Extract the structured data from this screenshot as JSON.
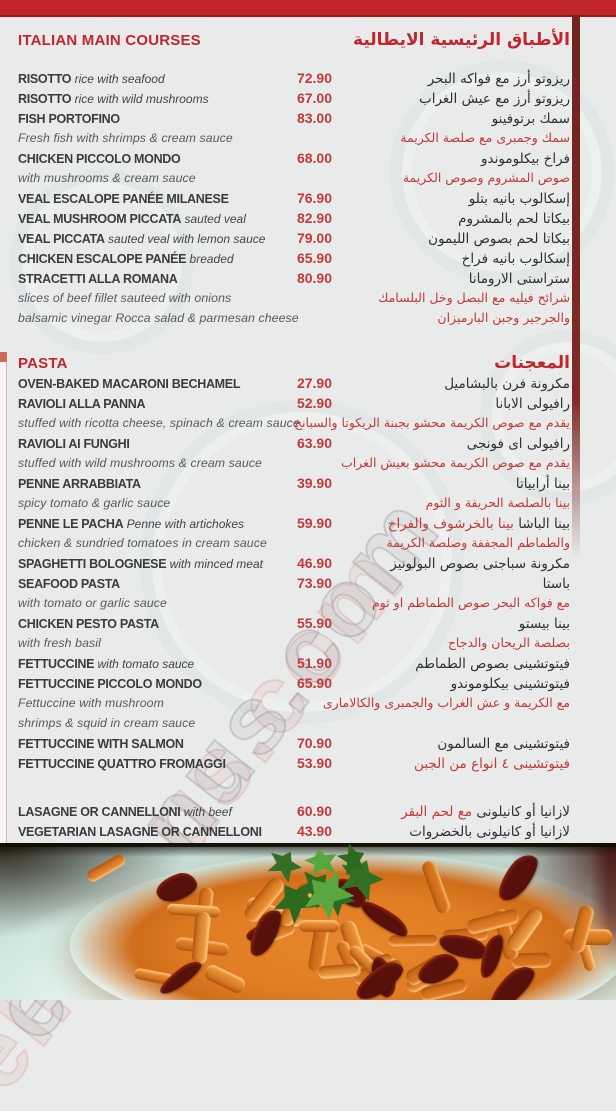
{
  "watermark": "elmenus.com",
  "colors": {
    "accent_red": "#c0262c",
    "price_red": "#bf3a38",
    "text_dark": "#3b3b3d",
    "desc_text": "#57585c",
    "arabic_red": "#c03a34",
    "strip_maroon": "#6f2420",
    "background": "#e9ebeb"
  },
  "sections": [
    {
      "title_en": "ITALIAN MAIN COURSES",
      "title_ar": "الأطباق الرئيسية الايطالية",
      "rows": [
        {
          "type": "item",
          "name": "RISOTTO",
          "note": "rice with seafood",
          "price": "72.90",
          "ar": "ريزوتو أرز مع فواكه البحر",
          "ar_red": ""
        },
        {
          "type": "item",
          "name": "RISOTTO",
          "note": "rice with wild mushrooms",
          "price": "67.00",
          "ar": "ريزوتو أرز مع عيش الغراب",
          "ar_red": ""
        },
        {
          "type": "item",
          "name": "FISH PORTOFINO",
          "note": "",
          "price": "83.00",
          "ar": "سمك برتوفينو",
          "ar_red": ""
        },
        {
          "type": "desc",
          "text": "Fresh fish with shrimps & cream sauce",
          "ar_red": "سمك وجمبرى مع صلصة الكريمة"
        },
        {
          "type": "item",
          "name": "CHICKEN PICCOLO MONDO",
          "note": "",
          "price": "68.00",
          "ar": "فراخ بيكلوموندو",
          "ar_red": ""
        },
        {
          "type": "desc",
          "text": "with mushrooms & cream sauce",
          "ar_red": "صوص المشروم وصوص الكريمة"
        },
        {
          "type": "item",
          "name": "VEAL ESCALOPE PANÉE MILANESE",
          "note": "",
          "price": "76.90",
          "ar": "إسكالوب بانيه بتلو",
          "ar_red": ""
        },
        {
          "type": "item",
          "name": "VEAL MUSHROOM PICCATA",
          "note": "sauted veal",
          "price": "82.90",
          "ar": "بيكاتا لحم بالمشروم",
          "ar_red": ""
        },
        {
          "type": "item",
          "name": "VEAL PICCATA",
          "note": "sauted veal with lemon sauce",
          "price": "79.00",
          "ar": "بيكاتا لحم بصوص الليمون",
          "ar_red": ""
        },
        {
          "type": "item",
          "name": "CHICKEN ESCALOPE PANÉE",
          "note": "breaded",
          "price": "65.90",
          "ar": "إسكالوب بانيه فراخ",
          "ar_red": ""
        },
        {
          "type": "item",
          "name": "STRACETTI ALLA ROMANA",
          "note": "",
          "price": "80.90",
          "ar": "ستراستى الارومانا",
          "ar_red": ""
        },
        {
          "type": "desc",
          "text": "slices of beef fillet sauteed with onions",
          "ar_red": "شرائح فيليه مع البصل وخل البلسامك"
        },
        {
          "type": "desc",
          "text": "balsamic vinegar Rocca salad & parmesan cheese",
          "ar_red": "والجرجير وجبن البارميزان"
        }
      ]
    },
    {
      "title_en": "PASTA",
      "title_ar": "المعجنات",
      "rows": [
        {
          "type": "item",
          "name": "OVEN-BAKED MACARONI BECHAMEL",
          "note": "",
          "price": "27.90",
          "ar": "مكرونة فرن بالبشاميل",
          "ar_red": ""
        },
        {
          "type": "item",
          "name": "RAVIOLI ALLA PANNA",
          "note": "",
          "price": "52.90",
          "ar": "رافيولى الابانا",
          "ar_red": ""
        },
        {
          "type": "desc",
          "text": "stuffed with ricotta cheese, spinach & cream sauce",
          "ar_red": "يقدم مع صوص الكريمة محشو بجبنة الريكوتا والسبانخ"
        },
        {
          "type": "item",
          "name": "RAVIOLI AI FUNGHI",
          "note": "",
          "price": "63.90",
          "ar": "رافيولى اى فونجى",
          "ar_red": ""
        },
        {
          "type": "desc",
          "text": "stuffed with wild mushrooms & cream sauce",
          "ar_red": "يقدم مع صوص الكريمة محشو بعيش الغراب"
        },
        {
          "type": "item",
          "name": "PENNE ARRABBIATA",
          "note": "",
          "price": "39.90",
          "ar": "بينا أرابياتا",
          "ar_red": ""
        },
        {
          "type": "desc",
          "text": "spicy tomato & garlic sauce",
          "ar_red": "بينا بالصلصة الحريفة و الثوم"
        },
        {
          "type": "item",
          "name": "PENNE LE PACHA",
          "note": "Penne with artichokes",
          "price": "59.90",
          "ar": "بينا الباشا",
          "ar_red": "بينا بالخرشوف والفراخ"
        },
        {
          "type": "desc",
          "text": "chicken & sundried tomatoes in cream sauce",
          "ar_red": "والطماطم المجففة وصلصة الكريمة"
        },
        {
          "type": "item",
          "name": "SPAGHETTI BOLOGNESE",
          "note": "with minced meat",
          "price": "46.90",
          "ar": "مكرونة سباجتى بصوص البولونيز",
          "ar_red": ""
        },
        {
          "type": "item",
          "name": "SEAFOOD PASTA",
          "note": "",
          "price": "73.90",
          "ar": "باستا",
          "ar_red": ""
        },
        {
          "type": "desc",
          "text": "with tomato or garlic sauce",
          "ar_red": "مع فواكه البحر صوص الطماطم او ثوم"
        },
        {
          "type": "item",
          "name": "CHICKEN PESTO PASTA",
          "note": "",
          "price": "55.90",
          "ar": "بينا بيستو",
          "ar_red": ""
        },
        {
          "type": "desc",
          "text": "with fresh basil",
          "ar_red": "بصلصة الريحان والدجاج"
        },
        {
          "type": "item",
          "name": "FETTUCCINE",
          "note": "with tomato sauce",
          "price": "51.90",
          "ar": "فيتوتشينى بصوص الطماطم",
          "ar_red": ""
        },
        {
          "type": "item",
          "name": "FETTUCCINE PICCOLO MONDO",
          "note": "",
          "price": "65.90",
          "ar": "فيتوتشينى بيكلوموندو",
          "ar_red": ""
        },
        {
          "type": "desc",
          "text": "Fettuccine with mushroom",
          "ar_red": "مع الكريمة و عش الغراب والجمبرى والكالامارى"
        },
        {
          "type": "desc",
          "text": " shrimps & squid in cream sauce",
          "ar_red": ""
        },
        {
          "type": "item",
          "name": "FETTUCCINE WITH SALMON",
          "note": "",
          "price": "70.90",
          "ar": "فيتوتشينى مع السالمون",
          "ar_red": ""
        },
        {
          "type": "item",
          "name": "FETTUCCINE QUATTRO FROMAGGI",
          "note": "",
          "price": "53.90",
          "ar": "",
          "ar_red": "فيتوتشينى ٤ انواع من الجبن"
        },
        {
          "type": "gap"
        },
        {
          "type": "item",
          "name": "LASAGNE OR CANNELLONI",
          "note": "with beef",
          "price": "60.90",
          "ar": "لازانيا أو كانيلونى",
          "ar_red": "مع لحم البقر"
        },
        {
          "type": "item",
          "name": "VEGETARIAN LASAGNE OR CANNELLONI",
          "note": "",
          "price": "43.90",
          "ar": "لازانيا أو كانيلونى بالخضروات",
          "ar_red": ""
        }
      ]
    }
  ],
  "photo": {
    "description": "plate of penne pasta with sun-dried tomatoes and parsley"
  }
}
